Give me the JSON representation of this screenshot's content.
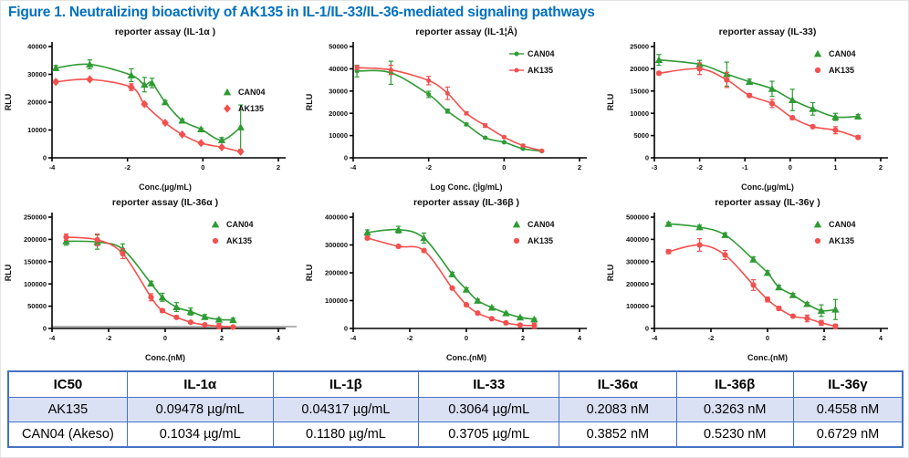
{
  "figure_title": "Figure 1. Neutralizing bioactivity of AK135 in IL-1/IL-33/IL-36-mediated signaling pathways",
  "colors": {
    "title_blue": "#0070C0",
    "can04_green": "#2e9b33",
    "ak135_red": "#f3504e",
    "table_border": "#4472c4",
    "row_highlight": "#dbe1f4"
  },
  "chart_data": [
    {
      "type": "line",
      "title": "reporter assay (IL-1α )",
      "xlabel": "Conc.(µg/mL)",
      "ylabel": "RLU",
      "xlim": [
        -4,
        2
      ],
      "xticks": [
        -4,
        -2,
        0,
        2
      ],
      "ylim": [
        0,
        40000
      ],
      "yticks": [
        0,
        10000,
        20000,
        30000,
        40000
      ],
      "legend_pos": "right-mid",
      "legend_style": "marker",
      "grid": false,
      "series": [
        {
          "name": "CAN04",
          "color": "#2e9b33",
          "marker": "triangle",
          "x": [
            -3.9,
            -3,
            -1.9,
            -1.55,
            -1.35,
            -1.0,
            -0.55,
            -0.05,
            0.5,
            1.0
          ],
          "y": [
            32300,
            33600,
            29700,
            26300,
            26900,
            20000,
            13400,
            10300,
            6400,
            11000
          ],
          "err": [
            900,
            1600,
            2300,
            2600,
            1700,
            600,
            500,
            400,
            900,
            8000
          ]
        },
        {
          "name": "AK135",
          "color": "#f3504e",
          "marker": "diamond",
          "x": [
            -3.9,
            -3,
            -1.9,
            -1.55,
            -1.0,
            -0.55,
            -0.05,
            0.5,
            1.0
          ],
          "y": [
            27300,
            28200,
            25400,
            19300,
            12600,
            8400,
            5300,
            3800,
            2200
          ],
          "err": [
            600,
            500,
            1200,
            500,
            400,
            400,
            300,
            300,
            300
          ]
        }
      ]
    },
    {
      "type": "line",
      "title": "reporter assay (IL-1¦Â)",
      "xlabel": "Log Conc. (¦Ìg/mL)",
      "ylabel": "RLU",
      "xlim": [
        -4,
        2
      ],
      "xticks": [
        -4,
        -2,
        0,
        2
      ],
      "ylim": [
        0,
        50000
      ],
      "yticks": [
        0,
        10000,
        20000,
        30000,
        40000,
        50000
      ],
      "legend_pos": "top-right",
      "legend_style": "line-marker",
      "grid": false,
      "series": [
        {
          "name": "CAN04",
          "color": "#2e9b33",
          "marker": "dot",
          "x": [
            -3.9,
            -3,
            -2,
            -1.5,
            -1,
            -0.5,
            0,
            0.5,
            1
          ],
          "y": [
            39000,
            38200,
            28500,
            21000,
            15000,
            9000,
            7000,
            4100,
            3000
          ],
          "err": [
            2600,
            5200,
            1400,
            900,
            600,
            400,
            300,
            300,
            300
          ]
        },
        {
          "name": "AK135",
          "color": "#f3504e",
          "marker": "dot",
          "x": [
            -3.9,
            -3,
            -2,
            -1.5,
            -1,
            -0.5,
            0,
            0.5,
            1
          ],
          "y": [
            40500,
            39500,
            34700,
            29000,
            20000,
            14500,
            9300,
            5500,
            3200
          ],
          "err": [
            900,
            2100,
            1900,
            2800,
            700,
            800,
            500,
            400,
            300
          ]
        }
      ]
    },
    {
      "type": "line",
      "title": "reporter assay (IL-33)",
      "xlabel": "Conc.(µg/mL)",
      "ylabel": "RLU",
      "xlim": [
        -3,
        2
      ],
      "xticks": [
        -3,
        -2,
        -1,
        0,
        1,
        2
      ],
      "ylim": [
        0,
        25000
      ],
      "yticks": [
        0,
        5000,
        10000,
        15000,
        20000,
        25000
      ],
      "legend_pos": "top-right",
      "legend_style": "marker",
      "grid": false,
      "series": [
        {
          "name": "CAN04",
          "color": "#2e9b33",
          "marker": "triangle",
          "x": [
            -2.9,
            -2,
            -1.4,
            -0.9,
            -0.4,
            0.05,
            0.5,
            1.0,
            1.5
          ],
          "y": [
            22000,
            21000,
            18800,
            17100,
            15500,
            13000,
            11000,
            9200,
            9300
          ],
          "err": [
            1200,
            900,
            2700,
            600,
            1700,
            2400,
            1400,
            800,
            400
          ]
        },
        {
          "name": "AK135",
          "color": "#f3504e",
          "marker": "circle",
          "x": [
            -2.9,
            -2,
            -1.4,
            -0.9,
            -0.4,
            0.05,
            0.5,
            1.0,
            1.5
          ],
          "y": [
            19000,
            20000,
            17500,
            14000,
            12200,
            9000,
            7000,
            6200,
            4600
          ],
          "err": [
            300,
            1300,
            1700,
            400,
            900,
            400,
            300,
            800,
            400
          ]
        }
      ]
    },
    {
      "type": "line",
      "title": "reporter assay (IL-36α )",
      "xlabel": "Conc.(nM)",
      "ylabel": "RLU",
      "xlim": [
        -4,
        4
      ],
      "xticks": [
        -4,
        -2,
        0,
        2,
        4
      ],
      "ylim": [
        0,
        250000
      ],
      "yticks": [
        0,
        50000,
        100000,
        150000,
        200000,
        250000
      ],
      "legend_pos": "top-right",
      "legend_style": "marker",
      "grid": false,
      "gray_baseline": true,
      "series": [
        {
          "name": "CAN04",
          "color": "#2e9b33",
          "marker": "triangle",
          "x": [
            -3.5,
            -2.4,
            -1.5,
            -0.5,
            -0.1,
            0.4,
            0.9,
            1.4,
            1.9,
            2.4
          ],
          "y": [
            196000,
            194000,
            178000,
            101000,
            70000,
            48000,
            38000,
            26000,
            20000,
            19000
          ],
          "err": [
            9000,
            16000,
            12000,
            5000,
            9000,
            10000,
            8000,
            5000,
            3000,
            4000
          ]
        },
        {
          "name": "AK135",
          "color": "#f3504e",
          "marker": "circle",
          "x": [
            -3.5,
            -2.4,
            -1.5,
            -0.5,
            -0.1,
            0.4,
            0.9,
            1.4,
            1.9,
            2.4
          ],
          "y": [
            205000,
            199000,
            168000,
            70000,
            40000,
            25000,
            14000,
            8000,
            5000,
            3000
          ],
          "err": [
            7000,
            13000,
            11000,
            8000,
            4000,
            3000,
            2000,
            1500,
            6000,
            1500
          ]
        }
      ]
    },
    {
      "type": "line",
      "title": "reporter assay (IL-36β )",
      "xlabel": "Conc.(nM)",
      "ylabel": "RLU",
      "xlim": [
        -4,
        4
      ],
      "xticks": [
        -4,
        -2,
        0,
        2,
        4
      ],
      "ylim": [
        0,
        400000
      ],
      "yticks": [
        0,
        100000,
        200000,
        300000,
        400000
      ],
      "legend_pos": "top-right",
      "legend_style": "marker",
      "grid": false,
      "series": [
        {
          "name": "CAN04",
          "color": "#2e9b33",
          "marker": "triangle",
          "x": [
            -3.5,
            -2.4,
            -1.5,
            -0.5,
            0,
            0.4,
            0.9,
            1.4,
            1.9,
            2.4
          ],
          "y": [
            345000,
            355000,
            325000,
            195000,
            140000,
            100000,
            75000,
            55000,
            40000,
            33000
          ],
          "err": [
            9000,
            12000,
            18000,
            7000,
            6000,
            5000,
            4000,
            3500,
            3000,
            3000
          ]
        },
        {
          "name": "AK135",
          "color": "#f3504e",
          "marker": "circle",
          "x": [
            -3.5,
            -2.4,
            -1.5,
            -0.5,
            0,
            0.4,
            0.9,
            1.4,
            1.9,
            2.4
          ],
          "y": [
            325000,
            295000,
            280000,
            145000,
            85000,
            55000,
            35000,
            20000,
            12000,
            10000
          ],
          "err": [
            6000,
            5000,
            5000,
            5000,
            4000,
            3000,
            2500,
            2000,
            1500,
            9000
          ]
        }
      ]
    },
    {
      "type": "line",
      "title": "reporter assay (IL-36γ )",
      "xlabel": "Conc.(nM)",
      "ylabel": "RLU",
      "xlim": [
        -4,
        4
      ],
      "xticks": [
        -4,
        -2,
        0,
        2,
        4
      ],
      "ylim": [
        0,
        500000
      ],
      "yticks": [
        0,
        100000,
        200000,
        300000,
        400000,
        500000
      ],
      "legend_pos": "top-right",
      "legend_style": "marker",
      "grid": false,
      "series": [
        {
          "name": "CAN04",
          "color": "#2e9b33",
          "marker": "triangle",
          "x": [
            -3.5,
            -2.4,
            -1.5,
            -0.5,
            0,
            0.4,
            0.9,
            1.4,
            1.9,
            2.4
          ],
          "y": [
            470000,
            455000,
            420000,
            310000,
            250000,
            185000,
            150000,
            110000,
            80000,
            85000
          ],
          "err": [
            7000,
            9000,
            9000,
            11000,
            9000,
            9000,
            7000,
            6000,
            26000,
            45000
          ]
        },
        {
          "name": "AK135",
          "color": "#f3504e",
          "marker": "circle",
          "x": [
            -3.5,
            -2.4,
            -1.5,
            -0.5,
            0,
            0.4,
            0.9,
            1.4,
            1.9,
            2.4
          ],
          "y": [
            345000,
            375000,
            330000,
            195000,
            130000,
            90000,
            55000,
            45000,
            25000,
            10000
          ],
          "err": [
            9000,
            28000,
            20000,
            24000,
            11000,
            9000,
            6000,
            15000,
            11000,
            9000
          ]
        }
      ]
    }
  ],
  "table": {
    "headers": [
      "IC50",
      "IL-1α",
      "IL-1β",
      "IL-33",
      "IL-36α",
      "IL-36β",
      "IL-36γ"
    ],
    "rows": [
      [
        "AK135",
        "0.09478 µg/mL",
        "0.04317 µg/mL",
        "0.3064 µg/mL",
        "0.2083 nM",
        "0.3263 nM",
        "0.4558 nM"
      ],
      [
        "CAN04 (Akeso)",
        "0.1034 µg/mL",
        "0.1180 µg/mL",
        "0.3705 µg/mL",
        "0.3852 nM",
        "0.5230 nM",
        "0.6729 nM"
      ]
    ],
    "highlight_row": 0
  }
}
